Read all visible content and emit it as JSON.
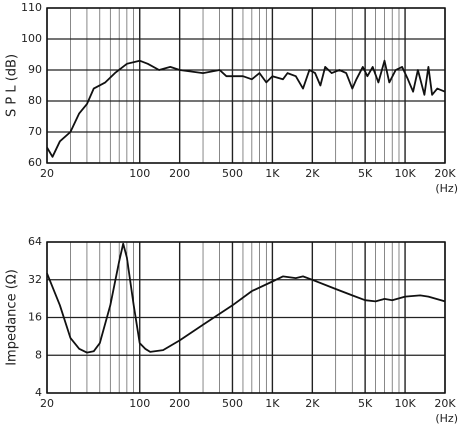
{
  "chart_data": [
    {
      "type": "line",
      "xlog": true,
      "ylog": false,
      "grid": true,
      "ylabel": "S P L (dB)",
      "xlabel": "(Hz)",
      "xlim": [
        20,
        20000
      ],
      "xticks": [
        20,
        100,
        200,
        500,
        {
          "value": 1000,
          "label": "1K"
        },
        {
          "value": 2000,
          "label": "2K"
        },
        {
          "value": 5000,
          "label": "5K"
        },
        {
          "value": 10000,
          "label": "10K"
        },
        {
          "value": 20000,
          "label": "20K"
        }
      ],
      "minor_xticks": [
        30,
        40,
        50,
        60,
        70,
        80,
        90,
        300,
        400,
        600,
        700,
        800,
        900,
        3000,
        4000,
        6000,
        7000,
        8000,
        9000
      ],
      "ylim": [
        60,
        110
      ],
      "yticks": [
        60,
        70,
        80,
        90,
        100,
        110
      ],
      "x": [
        20,
        22,
        25,
        30,
        35,
        40,
        45,
        55,
        65,
        80,
        100,
        115,
        140,
        170,
        200,
        300,
        400,
        450,
        600,
        700,
        800,
        900,
        1000,
        1200,
        1300,
        1500,
        1700,
        1900,
        2100,
        2300,
        2500,
        2800,
        3200,
        3600,
        4000,
        4300,
        4800,
        5200,
        5700,
        6300,
        7000,
        7600,
        8500,
        9500,
        10500,
        11500,
        12500,
        14000,
        15000,
        16000,
        17500,
        20000
      ],
      "series": [
        {
          "color": "#111111",
          "values": [
            65,
            62,
            67,
            70,
            76,
            79,
            84,
            86,
            89,
            92,
            93,
            92,
            90,
            91,
            90,
            89,
            90,
            88,
            88,
            87,
            89,
            86,
            88,
            87,
            89,
            88,
            84,
            90,
            89,
            85,
            91,
            89,
            90,
            89,
            84,
            87,
            91,
            88,
            91,
            86,
            93,
            86,
            90,
            91,
            87,
            83,
            90,
            82,
            91,
            82,
            84,
            83
          ]
        }
      ]
    },
    {
      "type": "line",
      "xlog": true,
      "ylog": true,
      "grid": true,
      "ylabel": "Impedance (Ω)",
      "xlabel": "(Hz)",
      "xlim": [
        20,
        20000
      ],
      "xticks": [
        20,
        100,
        200,
        500,
        {
          "value": 1000,
          "label": "1K"
        },
        {
          "value": 2000,
          "label": "2K"
        },
        {
          "value": 5000,
          "label": "5K"
        },
        {
          "value": 10000,
          "label": "10K"
        },
        {
          "value": 20000,
          "label": "20K"
        }
      ],
      "minor_xticks": [
        30,
        40,
        50,
        60,
        70,
        80,
        90,
        300,
        400,
        600,
        700,
        800,
        900,
        3000,
        4000,
        6000,
        7000,
        8000,
        9000
      ],
      "ylim": [
        4,
        64
      ],
      "yticks": [
        4,
        8,
        16,
        32,
        64
      ],
      "x": [
        20,
        25,
        30,
        35,
        40,
        45,
        50,
        60,
        70,
        75,
        80,
        90,
        100,
        110,
        120,
        150,
        200,
        300,
        500,
        700,
        1000,
        1200,
        1500,
        1700,
        2000,
        3000,
        4000,
        5000,
        6000,
        7000,
        8000,
        10000,
        13000,
        15000,
        20000
      ],
      "series": [
        {
          "color": "#111111",
          "values": [
            36,
            20,
            11,
            9,
            8.4,
            8.6,
            10,
            20,
            45,
            62,
            48,
            20,
            10,
            9,
            8.5,
            8.8,
            10.5,
            14,
            20,
            26,
            31,
            34,
            33,
            34,
            32,
            27,
            24,
            22,
            21.5,
            22.5,
            22,
            23.5,
            24,
            23.5,
            21.5
          ]
        }
      ]
    }
  ]
}
